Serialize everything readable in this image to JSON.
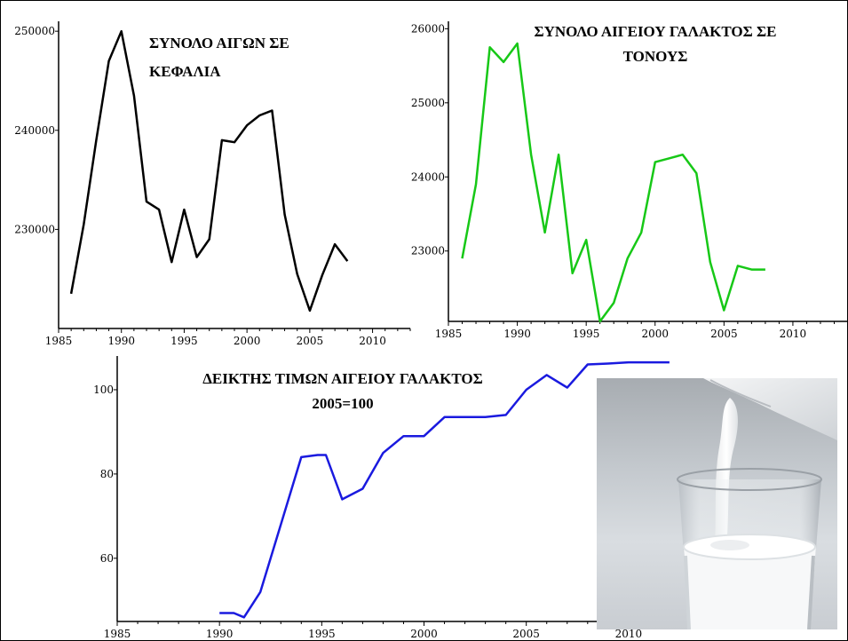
{
  "chart_data": [
    {
      "type": "line",
      "title": "ΣΥΝΟΛΟ ΑΙΓΩΝ ΣΕ ΚΕΦΑΛΙΑ",
      "title_lines": [
        "ΣΥΝΟΛΟ ΑΙΓΩΝ ΣΕ",
        "ΚΕΦΑΛΙΑ"
      ],
      "color": "#000000",
      "x_ticks": [
        "1985",
        "1990",
        "1995",
        "2000",
        "2005",
        "2010"
      ],
      "y_ticks": [
        "230000",
        "240000",
        "250000"
      ],
      "xlim": [
        1985,
        2013
      ],
      "ylim": [
        220000,
        251000
      ],
      "series": [
        {
          "x": [
            1986,
            1987,
            1988,
            1989,
            1990,
            1991,
            1992,
            1993,
            1994,
            1995,
            1996,
            1997,
            1998,
            1999,
            2000,
            2001,
            2002,
            2003,
            2004,
            2005,
            2006,
            2007,
            2008
          ],
          "values": [
            223500,
            230500,
            239000,
            247000,
            250000,
            243500,
            232800,
            232000,
            226700,
            232000,
            227200,
            229000,
            239000,
            238800,
            240500,
            241500,
            242000,
            231500,
            225500,
            221800,
            225400,
            228500,
            226800
          ]
        }
      ]
    },
    {
      "type": "line",
      "title": "ΣΥΝΟΛΟ ΑΙΓΕΙΟΥ ΓΑΛΑΚΤΟΣ ΣΕ ΤΟΝΟΥΣ",
      "title_lines": [
        "ΣΥΝΟΛΟ ΑΙΓΕΙΟΥ ΓΑΛΑΚΤΟΣ ΣΕ",
        "ΤΟΝΟΥΣ"
      ],
      "color": "#17c817",
      "x_ticks": [
        "1985",
        "1990",
        "1995",
        "2000",
        "2005",
        "2010"
      ],
      "y_ticks": [
        "23000",
        "24000",
        "25000",
        "26000"
      ],
      "xlim": [
        1985,
        2014
      ],
      "ylim": [
        22050,
        26100
      ],
      "series": [
        {
          "x": [
            1986,
            1987,
            1988,
            1989,
            1990,
            1991,
            1992,
            1993,
            1994,
            1995,
            1996,
            1997,
            1998,
            1999,
            2000,
            2001,
            2002,
            2003,
            2004,
            2005,
            2006,
            2007,
            2008
          ],
          "values": [
            22900,
            23900,
            25750,
            25550,
            25800,
            24300,
            23250,
            24300,
            22700,
            23150,
            22050,
            22300,
            22900,
            23250,
            24200,
            24250,
            24300,
            24050,
            22850,
            22200,
            22800,
            22750,
            22750
          ]
        }
      ]
    },
    {
      "type": "line",
      "title": "ΔΕΙΚΤΗΣ ΤΙΜΩΝ ΑΙΓΕΙΟΥ ΓΑΛΑΚΤΟΣ 2005=100",
      "title_lines": [
        "ΔΕΙΚΤΗΣ ΤΙΜΩΝ ΑΙΓΕΙΟΥ ΓΑΛΑΚΤΟΣ",
        "2005=100"
      ],
      "color": "#1a1adf",
      "x_ticks": [
        "1985",
        "1990",
        "1995",
        "2000",
        "2005",
        "2010"
      ],
      "y_ticks": [
        "60",
        "80",
        "100"
      ],
      "xlim": [
        1985,
        2014
      ],
      "ylim": [
        45,
        108
      ],
      "series": [
        {
          "x": [
            1990,
            1990.7,
            1991.2,
            1992,
            1993,
            1994,
            1994.8,
            1995.2,
            1996,
            1997,
            1998,
            1999,
            2000,
            2001,
            2002,
            2003,
            2004,
            2005,
            2006,
            2007,
            2008,
            2009,
            2010,
            2011,
            2012
          ],
          "values": [
            47,
            47,
            46,
            52,
            68,
            84,
            84.5,
            84.5,
            74,
            76.5,
            85,
            89,
            89,
            93.5,
            93.5,
            93.5,
            94,
            100,
            103.5,
            100.5,
            106,
            106.2,
            106.5,
            106.5,
            106.5
          ]
        }
      ]
    }
  ]
}
